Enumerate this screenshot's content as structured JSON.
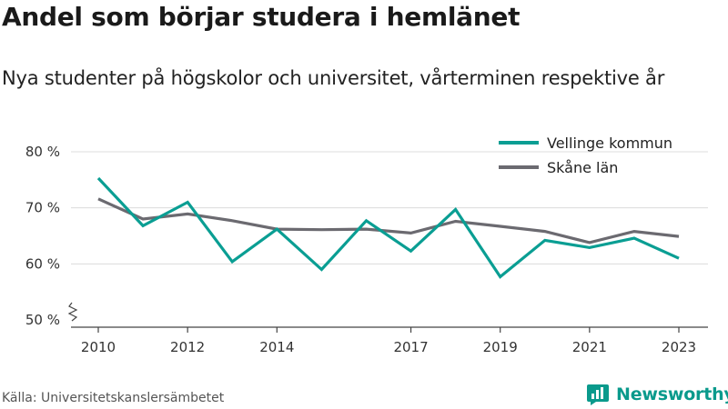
{
  "title": "Andel som börjar studera i hemlänet",
  "subtitle": "Nya studenter på högskolor och universitet, vårterminen respektive år",
  "source": "Källa: Universitetskanslersämbetet",
  "brand": "Newsworthy",
  "colors": {
    "vellinge": "#0a9e93",
    "skane": "#6b6a70",
    "grid": "#dcdcdc",
    "axis": "#444444",
    "brand": "#0a9a8c"
  },
  "chart_data": {
    "type": "line",
    "x": [
      2010,
      2011,
      2012,
      2013,
      2014,
      2015,
      2016,
      2017,
      2018,
      2019,
      2020,
      2021,
      2022,
      2023
    ],
    "x_tick_values": [
      2010,
      2012,
      2014,
      2017,
      2019,
      2021,
      2023
    ],
    "x_tick_labels": [
      "2010",
      "2012",
      "2014",
      "2017",
      "2019",
      "2021",
      "2023"
    ],
    "xlim": [
      2009.6,
      2023.4
    ],
    "ylim": [
      50,
      82
    ],
    "y_ticks": [
      50,
      60,
      70,
      80
    ],
    "y_tick_labels": [
      "50 %",
      "60 %",
      "70 %",
      "80 %"
    ],
    "y_axis_break": true,
    "grid": true,
    "legend_position": "top-right",
    "series": [
      {
        "name": "Vellinge kommun",
        "color": "#0a9e93",
        "values": [
          75.3,
          66.8,
          71.0,
          60.4,
          66.2,
          59.0,
          67.7,
          62.3,
          69.7,
          57.7,
          64.2,
          62.9,
          64.6,
          61.0
        ]
      },
      {
        "name": "Skåne län",
        "color": "#6b6a70",
        "values": [
          71.6,
          68.0,
          68.9,
          67.7,
          66.2,
          66.1,
          66.2,
          65.5,
          67.6,
          66.7,
          65.8,
          63.8,
          65.8,
          64.9
        ]
      }
    ]
  }
}
